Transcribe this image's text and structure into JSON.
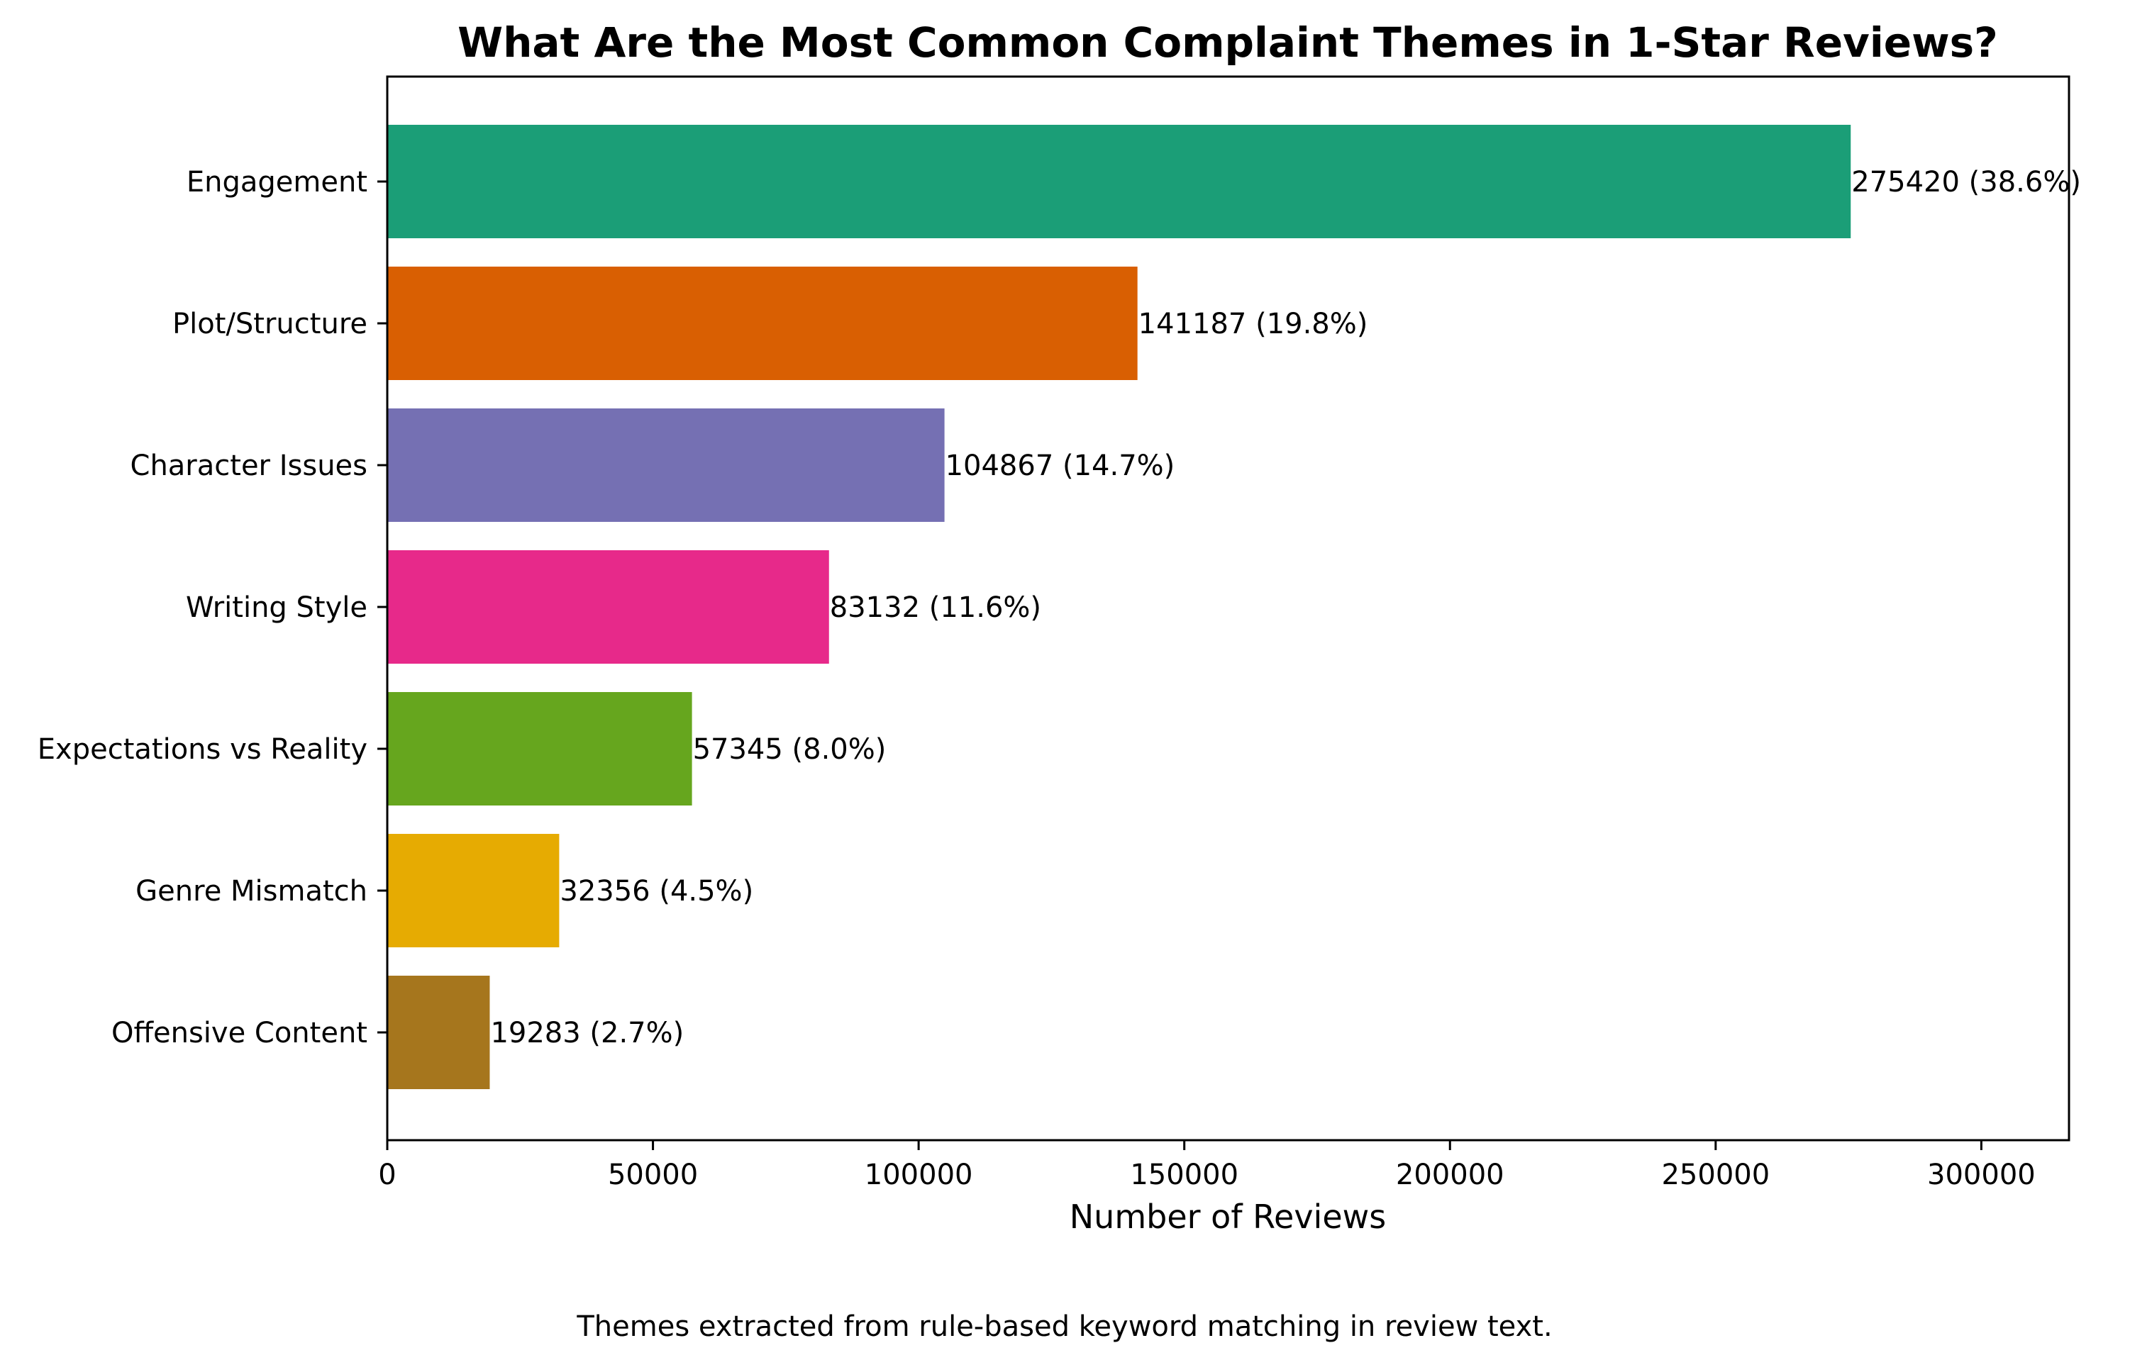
{
  "chart_data": {
    "type": "bar",
    "orientation": "horizontal",
    "title": "What Are the Most Common Complaint Themes in 1-Star Reviews?",
    "xlabel": "Number of Reviews",
    "ylabel": "",
    "categories": [
      "Engagement",
      "Plot/Structure",
      "Character Issues",
      "Writing Style",
      "Expectations vs Reality",
      "Genre Mismatch",
      "Offensive Content"
    ],
    "values": [
      275420,
      141187,
      104867,
      83132,
      57345,
      32356,
      19283
    ],
    "percentages": [
      "38.6%",
      "19.8%",
      "14.7%",
      "11.6%",
      "8.0%",
      "4.5%",
      "2.7%"
    ],
    "colors": [
      "#1b9e77",
      "#d95f02",
      "#7570b3",
      "#e7298a",
      "#66a61e",
      "#e6ab02",
      "#a6761d"
    ],
    "xlim": [
      0,
      316500
    ],
    "xticks": [
      0,
      50000,
      100000,
      150000,
      200000,
      250000,
      300000
    ],
    "grid": false,
    "legend": "none",
    "caption": "Themes extracted from rule-based keyword matching in review text."
  }
}
